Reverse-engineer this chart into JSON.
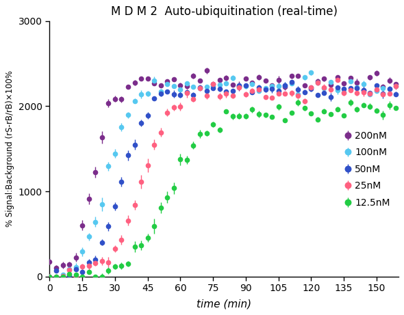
{
  "title": "M D M 2  Auto-ubiquitination (real-time)",
  "xlabel": "time (min)",
  "ylabel": "% Signal:Background (rS-rB/rB)×100%",
  "xlim": [
    0,
    160
  ],
  "ylim": [
    0,
    3000
  ],
  "yticks": [
    0,
    1000,
    2000,
    3000
  ],
  "xticks": [
    0,
    15,
    30,
    45,
    60,
    75,
    90,
    105,
    120,
    135,
    150
  ],
  "series": [
    {
      "label": "200nM",
      "color": "#7B2D8B",
      "plateau": 2300,
      "k": 0.22,
      "t_half": 20,
      "noise": 55,
      "err_base": 55,
      "seed": 101
    },
    {
      "label": "100nM",
      "color": "#56C8F0",
      "plateau": 2240,
      "k": 0.19,
      "t_half": 26,
      "noise": 45,
      "err_base": 50,
      "seed": 202
    },
    {
      "label": "50nM",
      "color": "#3050C8",
      "plateau": 2200,
      "k": 0.17,
      "t_half": 33,
      "noise": 45,
      "err_base": 50,
      "seed": 303
    },
    {
      "label": "25nM",
      "color": "#FF6080",
      "plateau": 2180,
      "k": 0.14,
      "t_half": 42,
      "noise": 50,
      "err_base": 55,
      "seed": 404
    },
    {
      "label": "12.5nM",
      "color": "#22CC44",
      "plateau": 1950,
      "k": 0.12,
      "t_half": 55,
      "noise": 50,
      "err_base": 55,
      "seed": 505
    }
  ],
  "background_color": "#ffffff",
  "marker_size": 5.5,
  "errorbar_capsize": 2.5,
  "errorbar_linewidth": 1.0,
  "point_interval": 1.5
}
